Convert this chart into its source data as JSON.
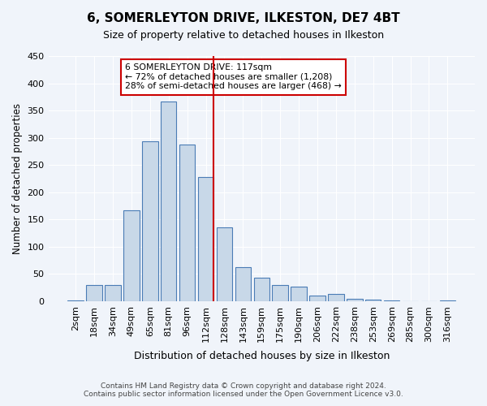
{
  "title": "6, SOMERLEYTON DRIVE, ILKESTON, DE7 4BT",
  "subtitle": "Size of property relative to detached houses in Ilkeston",
  "xlabel": "Distribution of detached houses by size in Ilkeston",
  "ylabel": "Number of detached properties",
  "footer_line1": "Contains HM Land Registry data © Crown copyright and database right 2024.",
  "footer_line2": "Contains public sector information licensed under the Open Government Licence v3.0.",
  "categories": [
    "2sqm",
    "18sqm",
    "34sqm",
    "49sqm",
    "65sqm",
    "81sqm",
    "96sqm",
    "112sqm",
    "128sqm",
    "143sqm",
    "159sqm",
    "175sqm",
    "190sqm",
    "206sqm",
    "222sqm",
    "238sqm",
    "253sqm",
    "269sqm",
    "285sqm",
    "300sqm",
    "316sqm"
  ],
  "values": [
    2,
    30,
    30,
    167,
    293,
    367,
    287,
    228,
    135,
    62,
    43,
    30,
    27,
    11,
    13,
    5,
    3,
    2,
    0,
    0,
    2
  ],
  "bar_color": "#c8d8e8",
  "bar_edge_color": "#4a7cb5",
  "background_color": "#f0f4fa",
  "grid_color": "#ffffff",
  "vline_x": 7,
  "vline_color": "#cc0000",
  "annotation_title": "6 SOMERLEYTON DRIVE: 117sqm",
  "annotation_line1": "← 72% of detached houses are smaller (1,208)",
  "annotation_line2": "28% of semi-detached houses are larger (468) →",
  "annotation_box_color": "#ffffff",
  "annotation_border_color": "#cc0000",
  "ylim": [
    0,
    450
  ],
  "yticks": [
    0,
    50,
    100,
    150,
    200,
    250,
    300,
    350,
    400,
    450
  ]
}
